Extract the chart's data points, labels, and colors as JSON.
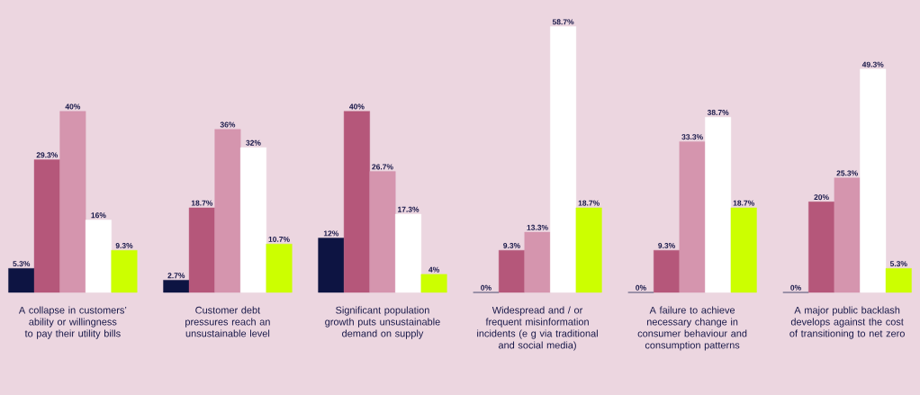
{
  "chart_data": {
    "type": "bar",
    "categories": [
      "A collapse in customers’ ability or willingness to pay their utility bills",
      "Customer debt pressures reach an unsustainable level",
      "Significant population growth puts unsustainable demand on supply",
      "Widespread and / or frequent misinformation incidents (e g via traditional and social media)",
      "A failure to achieve necessary change in consumer behaviour and consumption patterns",
      "A major public backlash develops against the cost of transitioning to net zero"
    ],
    "series": [
      {
        "color": "#0d1442",
        "values": [
          5.3,
          2.7,
          12,
          0,
          0,
          0
        ],
        "value_labels": [
          "5.3%",
          "2.7%",
          "12%",
          "0%",
          "0%",
          "0%"
        ]
      },
      {
        "color": "#b5577a",
        "values": [
          29.3,
          18.7,
          40,
          9.3,
          9.3,
          20
        ],
        "value_labels": [
          "29.3%",
          "18.7%",
          "40%",
          "9.3%",
          "9.3%",
          "20%"
        ]
      },
      {
        "color": "#d595ae",
        "values": [
          40,
          36,
          26.7,
          13.3,
          33.3,
          25.3
        ],
        "value_labels": [
          "40%",
          "36%",
          "26.7%",
          "13.3%",
          "33.3%",
          "25.3%"
        ]
      },
      {
        "color": "#ffffff",
        "values": [
          16,
          32,
          17.3,
          58.7,
          38.7,
          49.3
        ],
        "value_labels": [
          "16%",
          "32%",
          "17.3%",
          "58.7%",
          "38.7%",
          "49.3%"
        ]
      },
      {
        "color": "#ccff00",
        "values": [
          9.3,
          10.7,
          4,
          18.7,
          18.7,
          5.3
        ],
        "value_labels": [
          "9.3%",
          "10.7%",
          "4%",
          "18.7%",
          "18.7%",
          "5.3%"
        ]
      }
    ]
  }
}
